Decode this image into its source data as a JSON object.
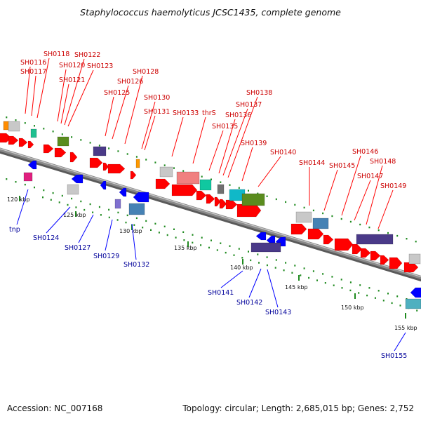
{
  "title": "Staphylococcus haemolyticus JCSC1435, complete genome",
  "footer": {
    "accession": "Accession: NC_007168",
    "summary": "Topology: circular; Length: 2,685,015 bp; Genes: 2,752"
  },
  "colors": {
    "forward_gene": "#ff0000",
    "reverse_gene": "#0000ff",
    "forward_label": "#cc0000",
    "reverse_label": "#00009a",
    "backbone": "#8a8a8a",
    "tick": "#1f8a1f"
  },
  "ticks": [
    {
      "label": "120 kbp"
    },
    {
      "label": "125 kbp"
    },
    {
      "label": "130 kbp"
    },
    {
      "label": "135 kbp"
    },
    {
      "label": "140 kbp"
    },
    {
      "label": "145 kbp"
    },
    {
      "label": "150 kbp"
    },
    {
      "label": "155 kbp"
    }
  ],
  "forward_genes": [
    {
      "label": "SH0116"
    },
    {
      "label": "SH0117"
    },
    {
      "label": "SH0118"
    },
    {
      "label": "SH0120"
    },
    {
      "label": "SH0121"
    },
    {
      "label": "SH0122"
    },
    {
      "label": "SH0123"
    },
    {
      "label": "SH0125"
    },
    {
      "label": "SH0126"
    },
    {
      "label": "SH0128"
    },
    {
      "label": "SH0130"
    },
    {
      "label": "SH0131"
    },
    {
      "label": "SH0133"
    },
    {
      "label": "thrS"
    },
    {
      "label": "SH0135"
    },
    {
      "label": "SH0136"
    },
    {
      "label": "SH0137"
    },
    {
      "label": "SH0138"
    },
    {
      "label": "SH0139"
    },
    {
      "label": "SH0140"
    },
    {
      "label": "SH0144"
    },
    {
      "label": "SH0145"
    },
    {
      "label": "SH0146"
    },
    {
      "label": "SH0147"
    },
    {
      "label": "SH0148"
    },
    {
      "label": "SH0149"
    }
  ],
  "reverse_genes": [
    {
      "label": "tnp"
    },
    {
      "label": "SH0124"
    },
    {
      "label": "SH0127"
    },
    {
      "label": "SH0129"
    },
    {
      "label": "SH0132"
    },
    {
      "label": "SH0141"
    },
    {
      "label": "SH0142"
    },
    {
      "label": "SH0143"
    },
    {
      "label": "SH0155"
    }
  ]
}
